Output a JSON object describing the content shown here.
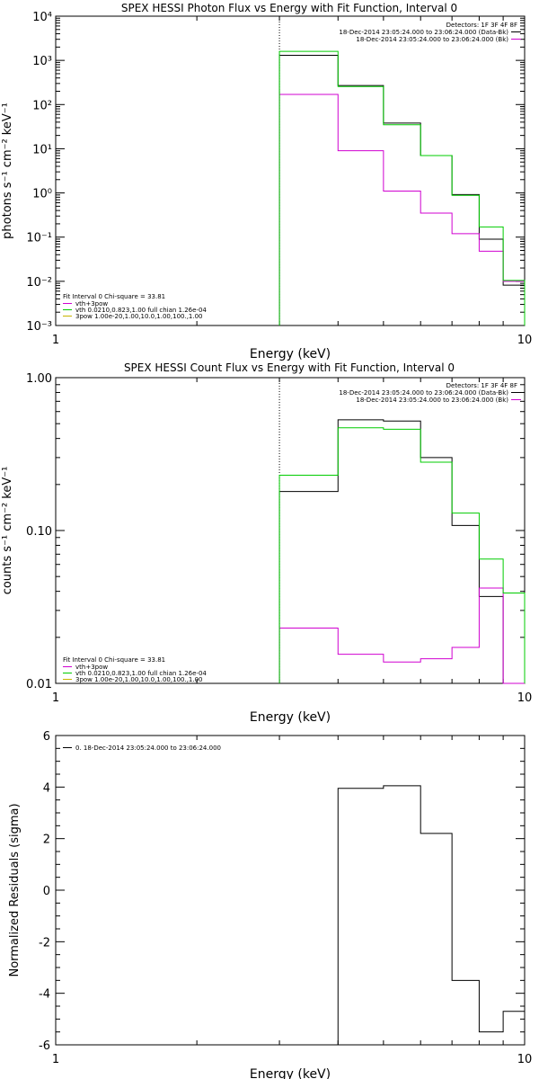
{
  "chart_data": [
    {
      "type": "line",
      "title": "SPEX HESSI Photon Flux vs Energy with Fit Function, Interval 0",
      "xlabel": "Energy (keV)",
      "ylabel": "photons s⁻¹ cm⁻² keV⁻¹",
      "xscale": "log",
      "yscale": "log",
      "xlim": [
        1,
        10
      ],
      "ylim": [
        0.001,
        10000
      ],
      "xticklabels": [
        "1",
        "10"
      ],
      "yticklabels": [
        "10⁻³",
        "10⁻²",
        "10⁻¹",
        "10⁰",
        "10¹",
        "10²",
        "10³",
        "10⁴"
      ],
      "vline_x": 3,
      "legend_right": {
        "header": "Detectors: 1F 3F 4F 8F",
        "lines": [
          "18-Dec-2014 23:05:24.000 to 23:06:24.000 (Data-Bk)",
          "18-Dec-2014 23:05:24.000 to 23:06:24.000 (Bk)"
        ]
      },
      "legend_left": {
        "header": "Fit Interval 0   Chi-square = 33.81",
        "lines": [
          "vth+3pow",
          "vth 0.0210,0.823,1.00  full chian 1.26e-04",
          "3pow 1.00e-20,1.00,10.0,1.00,100.,1.00"
        ]
      },
      "edges": [
        3,
        4,
        5,
        6,
        7,
        8,
        9,
        10
      ],
      "series": [
        {
          "name": "18-Dec-2014 23:05:24.000 to 23:06:24.000 (Data-Bk)",
          "color": "#000000",
          "values": [
            1300,
            270,
            38,
            7,
            0.92,
            0.09,
            0.0082
          ]
        },
        {
          "name": "18-Dec-2014 23:05:24.000 to 23:06:24.000 (Bk)",
          "color": "#d000d0",
          "values": [
            170,
            9,
            1.1,
            0.35,
            0.12,
            0.048,
            0.01
          ]
        },
        {
          "name": "vth+3pow",
          "color": "#00cc00",
          "values": [
            1600,
            255,
            35,
            7,
            0.88,
            0.17,
            0.0105
          ]
        }
      ]
    },
    {
      "type": "line",
      "title": "SPEX HESSI Count Flux vs Energy with Fit Function, Interval 0",
      "xlabel": "Energy (keV)",
      "ylabel": "counts s⁻¹ cm⁻² keV⁻¹",
      "xscale": "log",
      "yscale": "log",
      "xlim": [
        1,
        10
      ],
      "ylim": [
        0.01,
        1.0
      ],
      "xticklabels": [
        "1",
        "10"
      ],
      "yticklabels": [
        "0.01",
        "0.10",
        "1.00"
      ],
      "vline_x": 3,
      "legend_right": {
        "header": "Detectors: 1F 3F 4F 8F",
        "lines": [
          "18-Dec-2014 23:05:24.000 to 23:06:24.000 (Data-Bk)",
          "18-Dec-2014 23:05:24.000 to 23:06:24.000 (Bk)"
        ]
      },
      "legend_left": {
        "header": "Fit Interval 0   Chi-square = 33.81",
        "lines": [
          "vth+3pow",
          "vth 0.0210,0.823,1.00  full chian 1.26e-04",
          "3pow 1.00e-20,1.00,10.0,1.00,100.,1.00"
        ]
      },
      "edges": [
        3,
        4,
        5,
        6,
        7,
        8,
        9,
        10
      ],
      "series": [
        {
          "name": "18-Dec-2014 23:05:24.000 to 23:06:24.000 (Data-Bk)",
          "color": "#000000",
          "values": [
            0.18,
            0.53,
            0.52,
            0.3,
            0.108,
            0.037,
            0.01
          ]
        },
        {
          "name": "18-Dec-2014 23:05:24.000 to 23:06:24.000 (Bk)",
          "color": "#d000d0",
          "values": [
            0.023,
            0.0155,
            0.0138,
            0.0145,
            0.0172,
            0.042,
            0.01
          ]
        },
        {
          "name": "vth+3pow",
          "color": "#00cc00",
          "values": [
            0.23,
            0.47,
            0.46,
            0.28,
            0.13,
            0.065,
            0.039
          ]
        }
      ]
    },
    {
      "type": "line",
      "title": "",
      "xlabel": "Energy (keV)",
      "ylabel": "Normalized Residuals (sigma)",
      "xscale": "log",
      "yscale": "linear",
      "xlim": [
        1,
        10
      ],
      "ylim": [
        -6,
        6
      ],
      "xticklabels": [
        "1",
        "10"
      ],
      "yticklabels": [
        "-6",
        "-4",
        "-2",
        "0",
        "2",
        "4",
        "6"
      ],
      "legend_left": {
        "header": "",
        "lines": [
          "0. 18-Dec-2014 23:05:24.000 to 23:06:24.000"
        ]
      },
      "edges": [
        3,
        4,
        5,
        6,
        7,
        8,
        9,
        10
      ],
      "series": [
        {
          "name": "0. 18-Dec-2014 23:05:24.000 to 23:06:24.000",
          "color": "#000000",
          "values": [
            -6,
            3.95,
            4.05,
            2.2,
            -3.5,
            -5.5,
            -4.7
          ]
        }
      ]
    }
  ]
}
